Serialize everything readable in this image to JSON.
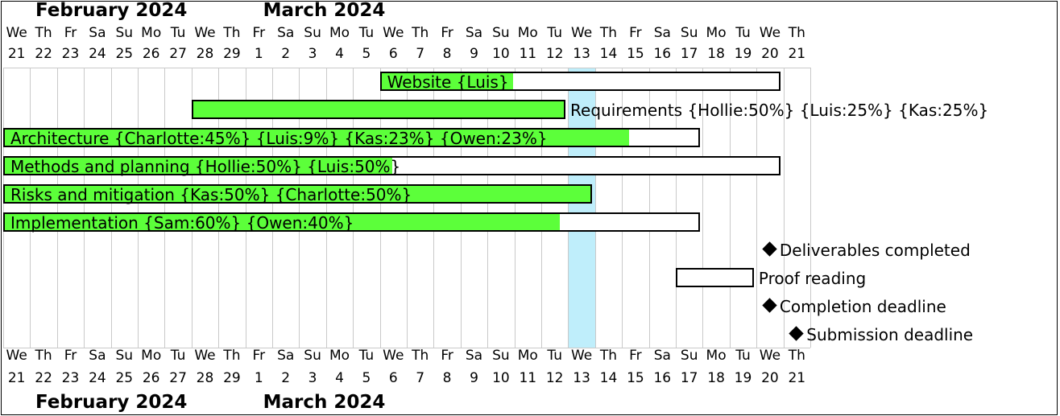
{
  "months": [
    {
      "label": "February 2024",
      "start": 0
    },
    {
      "label": "March 2024",
      "start": 9
    }
  ],
  "days": [
    {
      "name": "We",
      "num": "21"
    },
    {
      "name": "Th",
      "num": "22"
    },
    {
      "name": "Fr",
      "num": "23"
    },
    {
      "name": "Sa",
      "num": "24"
    },
    {
      "name": "Su",
      "num": "25"
    },
    {
      "name": "Mo",
      "num": "26"
    },
    {
      "name": "Tu",
      "num": "27"
    },
    {
      "name": "We",
      "num": "28"
    },
    {
      "name": "Th",
      "num": "29"
    },
    {
      "name": "Fr",
      "num": "1"
    },
    {
      "name": "Sa",
      "num": "2"
    },
    {
      "name": "Su",
      "num": "3"
    },
    {
      "name": "Mo",
      "num": "4"
    },
    {
      "name": "Tu",
      "num": "5"
    },
    {
      "name": "We",
      "num": "6"
    },
    {
      "name": "Th",
      "num": "7"
    },
    {
      "name": "Fr",
      "num": "8"
    },
    {
      "name": "Sa",
      "num": "9"
    },
    {
      "name": "Su",
      "num": "10"
    },
    {
      "name": "Mo",
      "num": "11"
    },
    {
      "name": "Tu",
      "num": "12"
    },
    {
      "name": "We",
      "num": "13"
    },
    {
      "name": "Th",
      "num": "14"
    },
    {
      "name": "Fr",
      "num": "15"
    },
    {
      "name": "Sa",
      "num": "16"
    },
    {
      "name": "Su",
      "num": "17"
    },
    {
      "name": "Mo",
      "num": "18"
    },
    {
      "name": "Tu",
      "num": "19"
    },
    {
      "name": "We",
      "num": "20"
    },
    {
      "name": "Th",
      "num": "21"
    }
  ],
  "today_index": 21,
  "colors": {
    "complete": "#5cff3a",
    "today": "#bfeefb",
    "grid": "#c9c9c9"
  },
  "tasks": [
    {
      "label": "Website {Luis}",
      "start": 14,
      "end": 28.9,
      "progress": 0.33,
      "label_pos": "inside"
    },
    {
      "label": "Requirements {Hollie:50%} {Luis:25%} {Kas:25%}",
      "start": 7,
      "end": 20.9,
      "progress": 1.0,
      "label_pos": "right"
    },
    {
      "label": "Architecture {Charlotte:45%} {Luis:9%} {Kas:23%} {Owen:23%}",
      "start": 0,
      "end": 25.9,
      "progress": 0.9,
      "label_pos": "inside"
    },
    {
      "label": "Methods and planning {Hollie:50%} {Luis:50%}",
      "start": 0,
      "end": 28.9,
      "progress": 0.5,
      "label_pos": "inside"
    },
    {
      "label": "Risks and mitigation {Kas:50%} {Charlotte:50%}",
      "start": 0,
      "end": 21.9,
      "progress": 1.0,
      "label_pos": "inside"
    },
    {
      "label": "Implementation {Sam:60%} {Owen:40%}",
      "start": 0,
      "end": 25.9,
      "progress": 0.8,
      "label_pos": "inside"
    },
    {
      "label": "Deliverables completed",
      "milestone": true,
      "at": 28.5
    },
    {
      "label": "Proof reading",
      "start": 25,
      "end": 27.9,
      "progress": 0,
      "label_pos": "right"
    },
    {
      "label": "Completion deadline",
      "milestone": true,
      "at": 28.5
    },
    {
      "label": "Submission deadline",
      "milestone": true,
      "at": 29.5
    }
  ]
}
